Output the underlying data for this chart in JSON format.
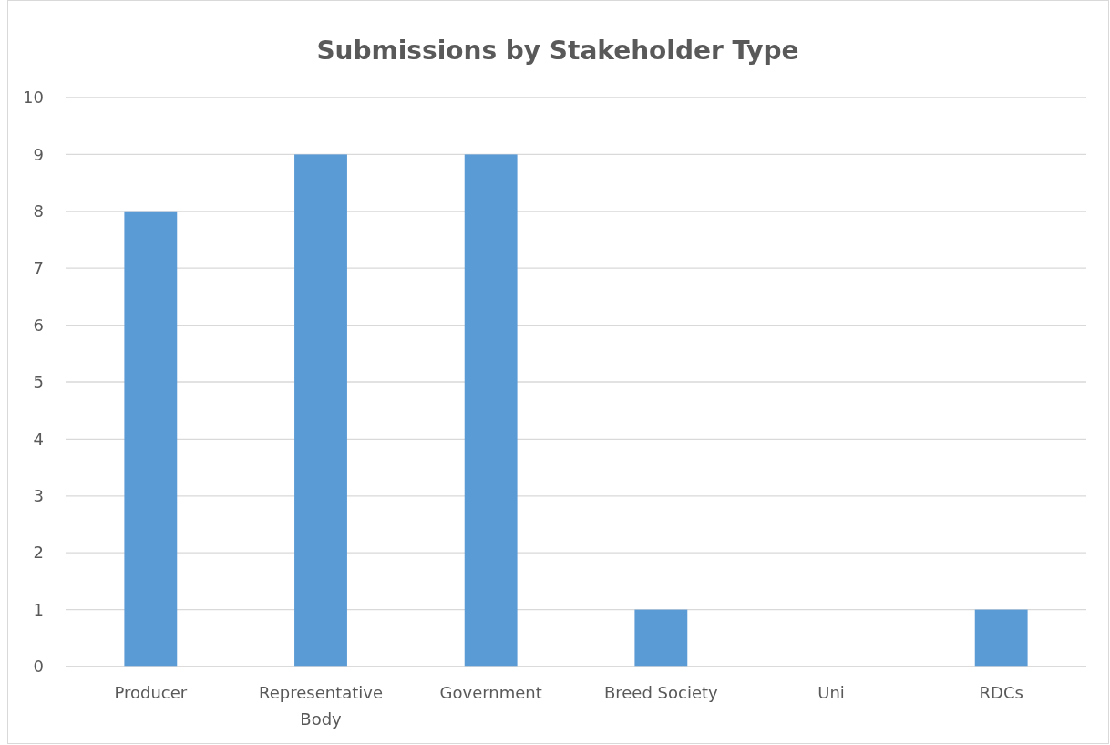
{
  "chart_data": {
    "type": "bar",
    "title": "Submissions by Stakeholder Type",
    "categories": [
      "Producer",
      "Representative Body",
      "Government",
      "Breed Society",
      "Uni",
      "RDCs"
    ],
    "values": [
      8,
      9,
      9,
      1,
      0,
      1
    ],
    "color": "#5b9bd5",
    "ylim": [
      0,
      10
    ],
    "yticks": [
      0,
      1,
      2,
      3,
      4,
      5,
      6,
      7,
      8,
      9,
      10
    ],
    "grid": "y"
  }
}
